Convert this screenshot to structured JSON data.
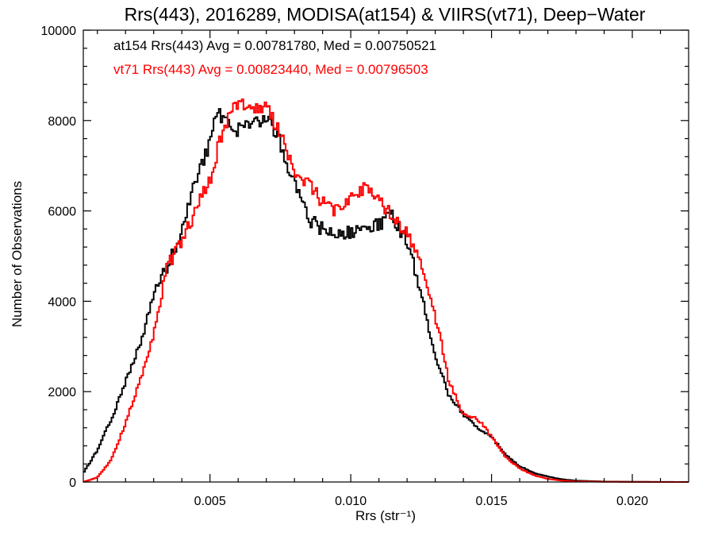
{
  "chart_data": {
    "type": "line",
    "title": "Rrs(443), 2016289, MODISA(at154) & VIIRS(vt71), Deep−Water",
    "xlabel": "Rrs (str⁻¹)",
    "ylabel": "Number of Observations",
    "xlim": [
      0.0005,
      0.022
    ],
    "ylim": [
      0,
      10000
    ],
    "x_ticks": [
      0.005,
      0.01,
      0.015,
      0.02
    ],
    "x_tick_labels": [
      "0.005",
      "0.010",
      "0.015",
      "0.020"
    ],
    "y_ticks": [
      0,
      2000,
      4000,
      6000,
      8000,
      10000
    ],
    "y_tick_labels": [
      "0",
      "2000",
      "4000",
      "6000",
      "8000",
      "10000"
    ],
    "grid": false,
    "step_style": "histogram",
    "annotations": [
      {
        "text": "at154 Rrs(443) Avg = 0.00781780, Med = 0.00750521",
        "color": "#000000"
      },
      {
        "text": "vt71 Rrs(443) Avg = 0.00823440, Med = 0.00796503",
        "color": "#ff0000"
      }
    ],
    "series": [
      {
        "name": "at154",
        "color": "#000000",
        "x": [
          0.0005,
          0.001,
          0.0015,
          0.002,
          0.0025,
          0.003,
          0.0035,
          0.004,
          0.0045,
          0.005,
          0.0052,
          0.0055,
          0.006,
          0.0065,
          0.007,
          0.0075,
          0.008,
          0.0085,
          0.009,
          0.0095,
          0.01,
          0.0105,
          0.011,
          0.0115,
          0.012,
          0.0125,
          0.013,
          0.0135,
          0.014,
          0.0145,
          0.015,
          0.0155,
          0.016,
          0.0165,
          0.017,
          0.0175,
          0.018,
          0.019,
          0.02,
          0.021,
          0.022
        ],
        "y": [
          200,
          700,
          1400,
          2200,
          3000,
          4200,
          4800,
          5500,
          6700,
          7500,
          8200,
          8000,
          7800,
          7900,
          8100,
          7500,
          6600,
          5800,
          5600,
          5500,
          5500,
          5700,
          5700,
          5900,
          5300,
          4200,
          2800,
          1900,
          1500,
          1200,
          1000,
          600,
          350,
          200,
          120,
          60,
          30,
          10,
          5,
          2,
          0
        ]
      },
      {
        "name": "vt71",
        "color": "#ff0000",
        "x": [
          0.0005,
          0.001,
          0.0015,
          0.002,
          0.0025,
          0.003,
          0.0035,
          0.004,
          0.0045,
          0.005,
          0.0055,
          0.006,
          0.0065,
          0.007,
          0.0075,
          0.008,
          0.0085,
          0.009,
          0.0095,
          0.01,
          0.0105,
          0.011,
          0.0115,
          0.012,
          0.0125,
          0.013,
          0.0135,
          0.014,
          0.0145,
          0.015,
          0.0155,
          0.016,
          0.0165,
          0.017,
          0.0175,
          0.018,
          0.019,
          0.02,
          0.021,
          0.022
        ],
        "y": [
          0,
          100,
          500,
          1300,
          2200,
          3300,
          4800,
          5300,
          6000,
          6700,
          7900,
          8400,
          8200,
          8300,
          7700,
          6900,
          6600,
          6200,
          6000,
          6300,
          6500,
          6200,
          5900,
          5500,
          4800,
          3700,
          2200,
          1500,
          1400,
          1000,
          550,
          300,
          150,
          70,
          30,
          15,
          5,
          2,
          1,
          0
        ]
      }
    ]
  }
}
